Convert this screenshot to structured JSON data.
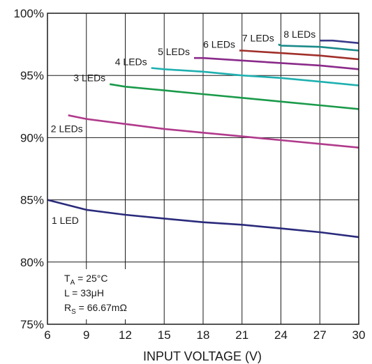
{
  "chart_data": {
    "type": "line",
    "xlabel": "INPUT VOLTAGE (V)",
    "ylabel": "",
    "xlim": [
      6,
      30
    ],
    "ylim": [
      75,
      100
    ],
    "xticks": [
      6,
      9,
      12,
      15,
      18,
      21,
      24,
      27,
      30
    ],
    "xtick_labels": [
      "6",
      "9",
      "12",
      "15",
      "18",
      "21",
      "24",
      "27",
      "30"
    ],
    "yticks": [
      75,
      80,
      85,
      90,
      95,
      100
    ],
    "ytick_labels": [
      "75%",
      "80%",
      "85%",
      "90%",
      "95%",
      "100%"
    ],
    "grid": true,
    "conditions": {
      "ta": {
        "main": "T",
        "sub": "A",
        "rest": " = 25°C"
      },
      "l": "L = 33μH",
      "rs": {
        "main": "R",
        "sub": "S",
        "rest": " = 66.67mΩ"
      }
    },
    "series": [
      {
        "name": "1 LED",
        "color": "#2a2a7c",
        "x": [
          6,
          9,
          12,
          15,
          18,
          21,
          24,
          27,
          30
        ],
        "y": [
          85.0,
          84.2,
          83.8,
          83.5,
          83.2,
          83.0,
          82.7,
          82.4,
          82.0
        ]
      },
      {
        "name": "2 LEDs",
        "color": "#b03a8c",
        "x": [
          7.6,
          9,
          12,
          15,
          18,
          21,
          24,
          27,
          30
        ],
        "y": [
          91.8,
          91.5,
          91.1,
          90.7,
          90.4,
          90.1,
          89.8,
          89.5,
          89.2
        ]
      },
      {
        "name": "3 LEDs",
        "color": "#1a9a4a",
        "x": [
          10.8,
          12,
          15,
          18,
          21,
          24,
          27,
          30
        ],
        "y": [
          94.3,
          94.1,
          93.8,
          93.5,
          93.2,
          92.9,
          92.6,
          92.3
        ]
      },
      {
        "name": "4 LEDs",
        "color": "#1fb0b0",
        "x": [
          14.0,
          15,
          18,
          21,
          24,
          27,
          30
        ],
        "y": [
          95.6,
          95.5,
          95.3,
          95.0,
          94.8,
          94.5,
          94.2
        ]
      },
      {
        "name": "5 LEDs",
        "color": "#8a2a8a",
        "x": [
          17.3,
          18,
          21,
          24,
          27,
          30
        ],
        "y": [
          96.4,
          96.4,
          96.2,
          96.0,
          95.8,
          95.5
        ]
      },
      {
        "name": "6 LEDs",
        "color": "#a0302a",
        "x": [
          20.8,
          21,
          24,
          27,
          30
        ],
        "y": [
          97.0,
          97.0,
          96.8,
          96.6,
          96.3
        ]
      },
      {
        "name": "7 LEDs",
        "color": "#1a8a8a",
        "x": [
          23.8,
          24,
          27,
          30
        ],
        "y": [
          97.5,
          97.4,
          97.3,
          97.0
        ]
      },
      {
        "name": "8 LEDs",
        "color": "#3a3a8a",
        "x": [
          27.0,
          28,
          30
        ],
        "y": [
          97.8,
          97.8,
          97.6
        ]
      }
    ]
  }
}
